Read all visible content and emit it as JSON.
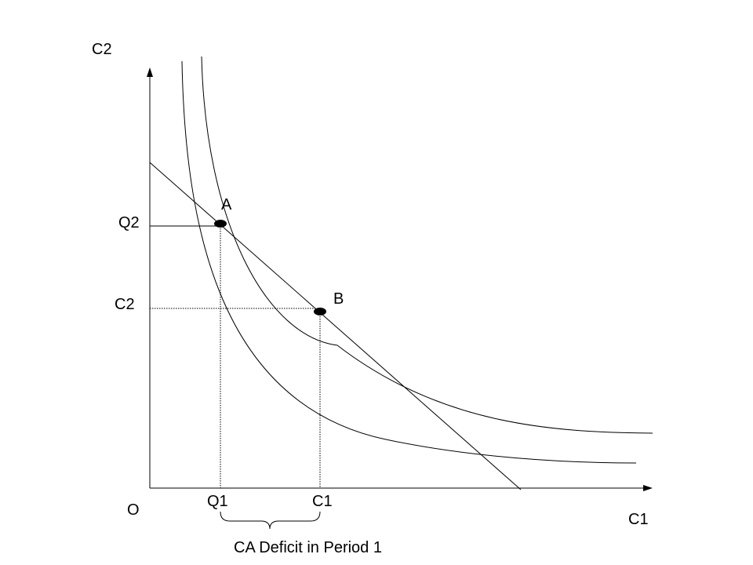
{
  "labels": {
    "y_axis": "C2",
    "x_axis": "C1",
    "origin": "O",
    "q2": "Q2",
    "c2": "C2",
    "q1": "Q1",
    "c1": "C1",
    "point_a": "A",
    "point_b": "B",
    "brace": "CA Deficit in Period 1"
  },
  "colors": {
    "line": "#000000",
    "background": "#ffffff"
  }
}
